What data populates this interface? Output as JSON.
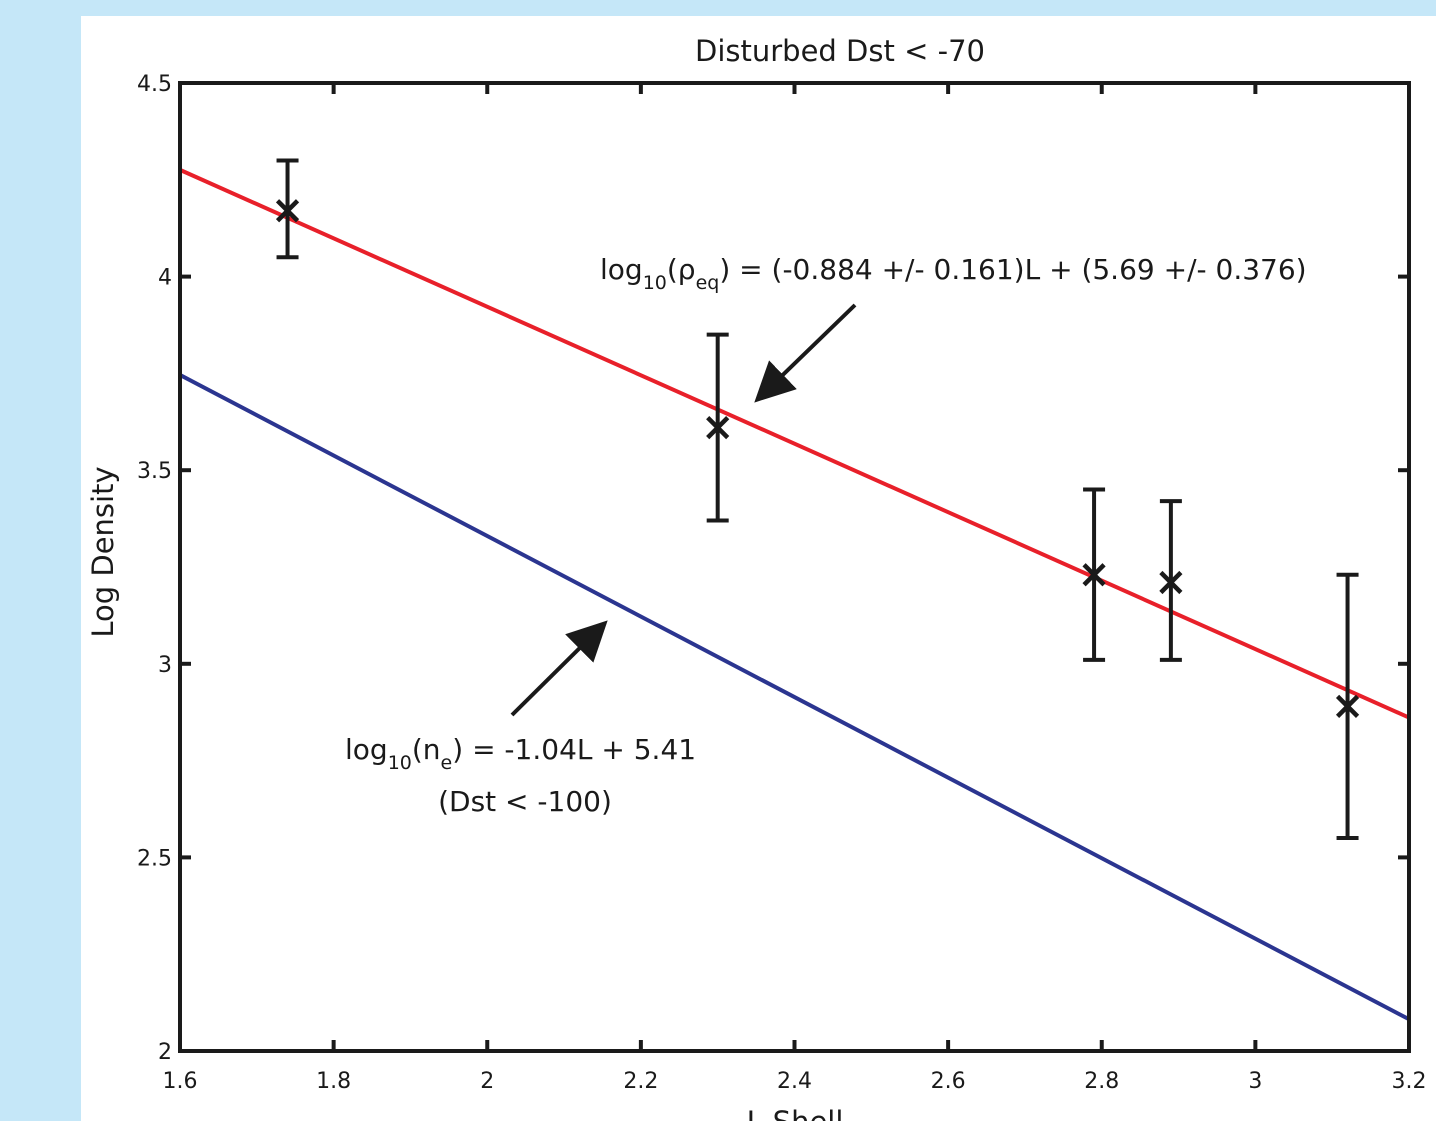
{
  "chart_data": {
    "type": "scatter",
    "title": "Disturbed Dst < -70",
    "xlabel": "L-Shell",
    "ylabel": "Log Density",
    "xlim": [
      1.6,
      3.2
    ],
    "ylim": [
      2,
      4.5
    ],
    "xticks": [
      1.6,
      1.8,
      2,
      2.2,
      2.4,
      2.6,
      2.8,
      3,
      3.2
    ],
    "xtick_labels": [
      "1.6",
      "1.8",
      "2",
      "2.2",
      "2.4",
      "2.6",
      "2.8",
      "3",
      "3.2"
    ],
    "yticks": [
      2,
      2.5,
      3,
      3.5,
      4,
      4.5
    ],
    "ytick_labels": [
      "2",
      "2.5",
      "3",
      "3.5",
      "4",
      "4.5"
    ],
    "grid": false,
    "points": [
      {
        "x": 1.74,
        "y": 4.17,
        "ylow": 4.05,
        "yhigh": 4.3
      },
      {
        "x": 2.3,
        "y": 3.61,
        "ylow": 3.37,
        "yhigh": 3.85
      },
      {
        "x": 2.79,
        "y": 3.23,
        "ylow": 3.01,
        "yhigh": 3.45
      },
      {
        "x": 2.89,
        "y": 3.21,
        "ylow": 3.01,
        "yhigh": 3.42
      },
      {
        "x": 3.12,
        "y": 2.89,
        "ylow": 2.55,
        "yhigh": 3.23
      }
    ],
    "lines": [
      {
        "slope": -0.884,
        "intercept": 5.69,
        "color": "#e8202a"
      },
      {
        "slope": -1.04,
        "intercept": 5.41,
        "color": "#2b3590"
      }
    ],
    "annotations": [
      {
        "text_prefix": "log",
        "sub1": "10",
        "text_mid": "(ρ",
        "sub2": "eq",
        "text_suffix": ") = (-0.884 +/- 0.161)L + (5.69 +/- 0.376)"
      },
      {
        "text_prefix": "log",
        "sub1": "10",
        "text_mid": "(n",
        "sub2": "e",
        "text_suffix": ") = -1.04L + 5.41",
        "line2": "(Dst < -100)"
      }
    ],
    "marker_color": "#1a1a1a"
  }
}
